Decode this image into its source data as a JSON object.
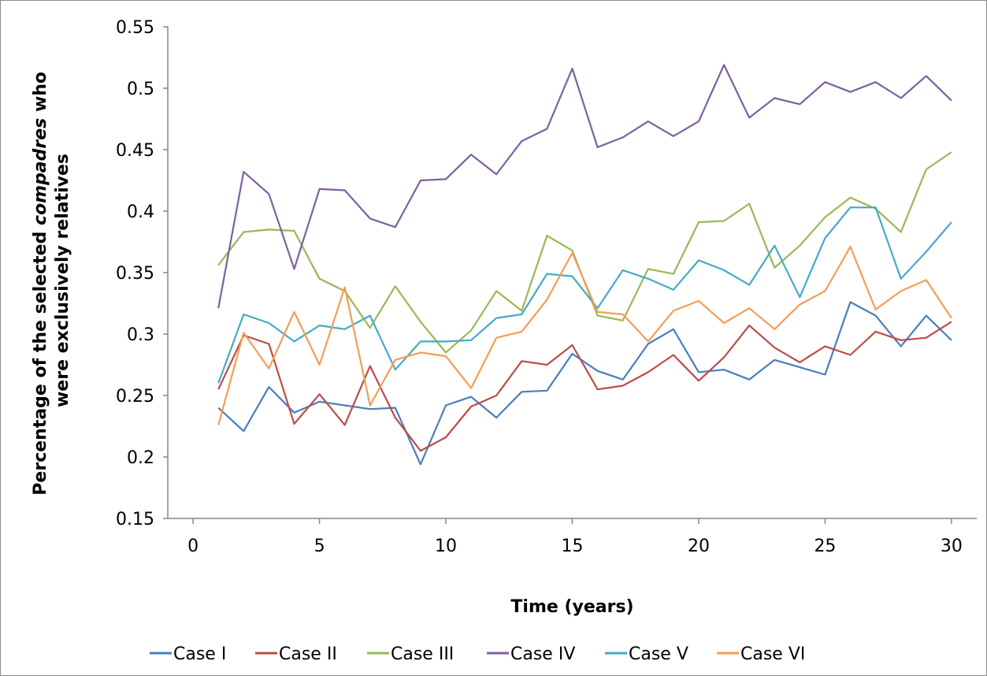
{
  "chart_data": {
    "type": "line",
    "xlabel": "Time (years)",
    "ylabel_parts": [
      "Percentage of the selected ",
      "compadres",
      " who"
    ],
    "ylabel_line2": "were exclusively relatives",
    "xlim": [
      -1,
      31
    ],
    "ylim": [
      0.15,
      0.55
    ],
    "x_ticks": [
      0,
      5,
      10,
      15,
      20,
      25,
      30
    ],
    "x_tick_labels": [
      "0",
      "5",
      "10",
      "15",
      "20",
      "25",
      "30"
    ],
    "y_ticks": [
      0.15,
      0.2,
      0.25,
      0.3,
      0.35,
      0.4,
      0.45,
      0.5,
      0.55
    ],
    "y_tick_labels": [
      "0.15",
      "0.2",
      "0.25",
      "0.3",
      "0.35",
      "0.4",
      "0.45",
      "0.5",
      "0.55"
    ],
    "grid": false,
    "legend_position": "bottom",
    "x": [
      1,
      2,
      3,
      4,
      5,
      6,
      7,
      8,
      9,
      10,
      11,
      12,
      13,
      14,
      15,
      16,
      17,
      18,
      19,
      20,
      21,
      22,
      23,
      24,
      25,
      26,
      27,
      28,
      29,
      30
    ],
    "series": [
      {
        "name": "Case I",
        "color": "#4a7ebb",
        "values": [
          0.24,
          0.221,
          0.257,
          0.236,
          0.245,
          0.242,
          0.239,
          0.24,
          0.194,
          0.242,
          0.249,
          0.232,
          0.253,
          0.254,
          0.284,
          0.27,
          0.263,
          0.292,
          0.304,
          0.269,
          0.271,
          0.263,
          0.279,
          0.273,
          0.267,
          0.326,
          0.315,
          0.29,
          0.315,
          0.295
        ]
      },
      {
        "name": "Case II",
        "color": "#be4b48",
        "values": [
          0.255,
          0.299,
          0.292,
          0.227,
          0.251,
          0.226,
          0.274,
          0.232,
          0.205,
          0.216,
          0.241,
          0.25,
          0.278,
          0.275,
          0.291,
          0.255,
          0.258,
          0.269,
          0.283,
          0.262,
          0.281,
          0.307,
          0.289,
          0.277,
          0.29,
          0.283,
          0.302,
          0.295,
          0.297,
          0.31
        ]
      },
      {
        "name": "Case III",
        "color": "#98b954",
        "values": [
          0.356,
          0.383,
          0.385,
          0.384,
          0.345,
          0.335,
          0.305,
          0.339,
          0.31,
          0.285,
          0.303,
          0.335,
          0.319,
          0.38,
          0.368,
          0.315,
          0.311,
          0.353,
          0.349,
          0.391,
          0.392,
          0.406,
          0.354,
          0.372,
          0.395,
          0.411,
          0.402,
          0.383,
          0.434,
          0.448
        ]
      },
      {
        "name": "Case IV",
        "color": "#7d60a0",
        "values": [
          0.321,
          0.432,
          0.414,
          0.353,
          0.418,
          0.417,
          0.394,
          0.387,
          0.425,
          0.426,
          0.446,
          0.43,
          0.457,
          0.467,
          0.516,
          0.452,
          0.46,
          0.473,
          0.461,
          0.473,
          0.519,
          0.476,
          0.492,
          0.487,
          0.505,
          0.497,
          0.505,
          0.492,
          0.51,
          0.49
        ]
      },
      {
        "name": "Case V",
        "color": "#46aac5",
        "values": [
          0.26,
          0.316,
          0.309,
          0.294,
          0.307,
          0.304,
          0.315,
          0.271,
          0.294,
          0.294,
          0.295,
          0.313,
          0.316,
          0.349,
          0.347,
          0.321,
          0.352,
          0.345,
          0.336,
          0.36,
          0.352,
          0.34,
          0.372,
          0.33,
          0.378,
          0.403,
          0.403,
          0.345,
          0.367,
          0.391
        ]
      },
      {
        "name": "Case VI",
        "color": "#f59d56",
        "values": [
          0.226,
          0.301,
          0.272,
          0.318,
          0.275,
          0.338,
          0.242,
          0.279,
          0.285,
          0.282,
          0.256,
          0.297,
          0.302,
          0.328,
          0.366,
          0.318,
          0.316,
          0.294,
          0.319,
          0.327,
          0.309,
          0.321,
          0.304,
          0.324,
          0.335,
          0.371,
          0.32,
          0.335,
          0.344,
          0.313
        ]
      }
    ]
  }
}
